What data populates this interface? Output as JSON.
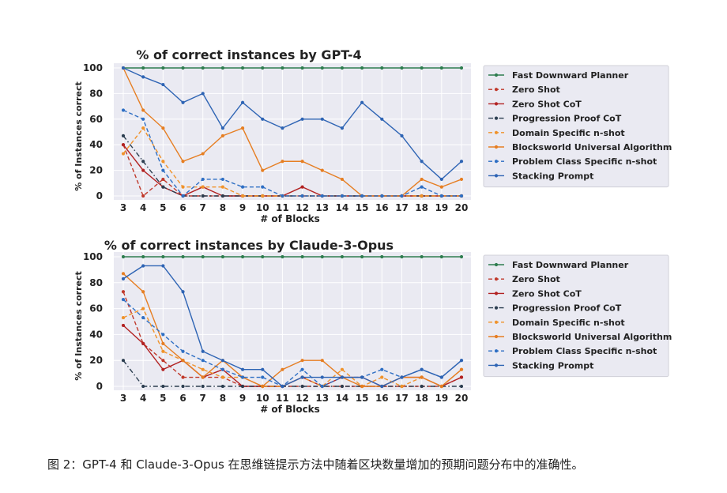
{
  "caption": "图 2：GPT-4 和 Claude-3-Opus 在思维链提示方法中随着区块数量增加的预期问题分布中的准确性。",
  "chart_data": [
    {
      "type": "line",
      "title": "% of correct instances by GPT-4",
      "xlabel": "# of Blocks",
      "ylabel": "% of Instances correct",
      "x": [
        3,
        4,
        5,
        6,
        7,
        8,
        9,
        10,
        11,
        12,
        13,
        14,
        15,
        16,
        17,
        18,
        19,
        20
      ],
      "xticks": [
        "3",
        "4",
        "5",
        "6",
        "7",
        "8",
        "9",
        "10",
        "11",
        "12",
        "13",
        "14",
        "15",
        "16",
        "17",
        "18",
        "19",
        "20"
      ],
      "ylim": [
        0,
        100
      ],
      "yticks": [
        "0",
        "20",
        "40",
        "60",
        "80",
        "100"
      ],
      "grid": true,
      "legend_position": "right",
      "series": [
        {
          "name": "Fast Downward Planner",
          "color": "#2e7d4f",
          "dash": "solid",
          "values": [
            100,
            100,
            100,
            100,
            100,
            100,
            100,
            100,
            100,
            100,
            100,
            100,
            100,
            100,
            100,
            100,
            100,
            100
          ]
        },
        {
          "name": "Zero Shot",
          "color": "#c0392b",
          "dash": "dashed",
          "values": [
            40,
            0,
            13,
            0,
            0,
            0,
            0,
            0,
            0,
            0,
            0,
            0,
            0,
            0,
            0,
            0,
            0,
            0
          ]
        },
        {
          "name": "Zero Shot CoT",
          "color": "#b22222",
          "dash": "solid",
          "values": [
            40,
            20,
            7,
            0,
            7,
            0,
            0,
            0,
            0,
            7,
            0,
            0,
            0,
            0,
            0,
            0,
            0,
            0
          ]
        },
        {
          "name": "Progression Proof CoT",
          "color": "#2c3e50",
          "dash": "dashdot",
          "values": [
            47,
            27,
            7,
            0,
            0,
            0,
            0,
            0,
            0,
            0,
            0,
            0,
            0,
            0,
            0,
            0,
            0,
            0
          ]
        },
        {
          "name": "Domain Specific n-shot",
          "color": "#f0932b",
          "dash": "dashed",
          "values": [
            33,
            53,
            27,
            7,
            7,
            7,
            0,
            0,
            0,
            0,
            0,
            0,
            0,
            0,
            0,
            0,
            0,
            0
          ]
        },
        {
          "name": "Blocksworld Universal Algorithm",
          "color": "#e67e22",
          "dash": "solid",
          "values": [
            100,
            67,
            53,
            27,
            33,
            47,
            53,
            20,
            27,
            27,
            20,
            13,
            0,
            0,
            0,
            13,
            7,
            13
          ]
        },
        {
          "name": "Problem Class Specific n-shot",
          "color": "#2e6fc4",
          "dash": "dashed",
          "values": [
            67,
            60,
            20,
            0,
            13,
            13,
            7,
            7,
            0,
            0,
            0,
            0,
            0,
            0,
            0,
            7,
            0,
            0
          ]
        },
        {
          "name": "Stacking Prompt",
          "color": "#2e64b4",
          "dash": "solid",
          "values": [
            100,
            93,
            87,
            73,
            80,
            53,
            73,
            60,
            53,
            60,
            60,
            53,
            73,
            60,
            47,
            27,
            13,
            27
          ]
        }
      ]
    },
    {
      "type": "line",
      "title": "% of correct instances by Claude-3-Opus",
      "xlabel": "# of Blocks",
      "ylabel": "% of Instances correct",
      "x": [
        3,
        4,
        5,
        6,
        7,
        8,
        9,
        10,
        11,
        12,
        13,
        14,
        15,
        16,
        17,
        18,
        19,
        20
      ],
      "xticks": [
        "3",
        "4",
        "5",
        "6",
        "7",
        "8",
        "9",
        "10",
        "11",
        "12",
        "13",
        "14",
        "15",
        "16",
        "17",
        "18",
        "19",
        "20"
      ],
      "ylim": [
        0,
        100
      ],
      "yticks": [
        "0",
        "20",
        "40",
        "60",
        "80",
        "100"
      ],
      "grid": true,
      "legend_position": "right",
      "series": [
        {
          "name": "Fast Downward Planner",
          "color": "#2e7d4f",
          "dash": "solid",
          "values": [
            100,
            100,
            100,
            100,
            100,
            100,
            100,
            100,
            100,
            100,
            100,
            100,
            100,
            100,
            100,
            100,
            100,
            100
          ]
        },
        {
          "name": "Zero Shot",
          "color": "#c0392b",
          "dash": "dashed",
          "values": [
            73,
            33,
            20,
            7,
            7,
            7,
            0,
            0,
            0,
            0,
            0,
            0,
            0,
            0,
            0,
            0,
            0,
            7
          ]
        },
        {
          "name": "Zero Shot CoT",
          "color": "#b22222",
          "dash": "solid",
          "values": [
            47,
            33,
            13,
            20,
            7,
            13,
            0,
            0,
            0,
            7,
            0,
            7,
            7,
            0,
            7,
            7,
            0,
            7
          ]
        },
        {
          "name": "Progression Proof CoT",
          "color": "#2c3e50",
          "dash": "dashdot",
          "values": [
            20,
            0,
            0,
            0,
            0,
            0,
            0,
            0,
            0,
            0,
            0,
            0,
            0,
            0,
            0,
            0,
            0,
            0
          ]
        },
        {
          "name": "Domain Specific n-shot",
          "color": "#f0932b",
          "dash": "dashed",
          "values": [
            53,
            60,
            27,
            20,
            13,
            7,
            7,
            0,
            0,
            7,
            0,
            13,
            0,
            7,
            0,
            7,
            0,
            13
          ]
        },
        {
          "name": "Blocksworld Universal Algorithm",
          "color": "#e67e22",
          "dash": "solid",
          "values": [
            87,
            73,
            33,
            20,
            7,
            20,
            7,
            0,
            13,
            20,
            20,
            7,
            0,
            0,
            7,
            7,
            0,
            13
          ]
        },
        {
          "name": "Problem Class Specific n-shot",
          "color": "#2e6fc4",
          "dash": "dashed",
          "values": [
            67,
            53,
            40,
            27,
            20,
            13,
            7,
            7,
            0,
            13,
            0,
            7,
            7,
            13,
            7,
            13,
            7,
            20
          ]
        },
        {
          "name": "Stacking Prompt",
          "color": "#2e64b4",
          "dash": "solid",
          "values": [
            83,
            93,
            93,
            73,
            27,
            20,
            13,
            13,
            0,
            7,
            7,
            7,
            7,
            0,
            7,
            13,
            7,
            20
          ]
        }
      ]
    }
  ]
}
